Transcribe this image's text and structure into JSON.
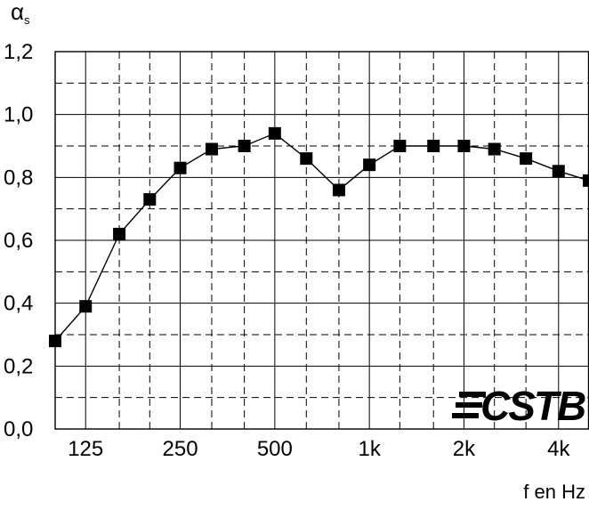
{
  "chart_data": {
    "type": "line",
    "title": "",
    "ylabel_main": "α",
    "ylabel_sub": "s",
    "xlabel": "f en Hz",
    "ylim": [
      0,
      1.2
    ],
    "yticks": [
      "0,0",
      "0,2",
      "0,4",
      "0,6",
      "0,8",
      "1,0",
      "1,2"
    ],
    "xtick_labels": [
      {
        "label": "125",
        "freq": 125
      },
      {
        "label": "250",
        "freq": 250
      },
      {
        "label": "500",
        "freq": 500
      },
      {
        "label": "1k",
        "freq": 1000
      },
      {
        "label": "2k",
        "freq": 2000
      },
      {
        "label": "4k",
        "freq": 4000
      }
    ],
    "x_scale": "log",
    "grid": true,
    "series": [
      {
        "marker": "square",
        "x": [
          100,
          125,
          160,
          200,
          250,
          315,
          400,
          500,
          630,
          800,
          1000,
          1250,
          1600,
          2000,
          2500,
          3150,
          4000,
          5000
        ],
        "y": [
          0.28,
          0.39,
          0.62,
          0.73,
          0.83,
          0.89,
          0.9,
          0.94,
          0.86,
          0.76,
          0.84,
          0.9,
          0.9,
          0.9,
          0.89,
          0.86,
          0.82,
          0.79
        ]
      }
    ]
  },
  "logo": {
    "text": "CSTB",
    "icon": "three-bars-icon"
  }
}
